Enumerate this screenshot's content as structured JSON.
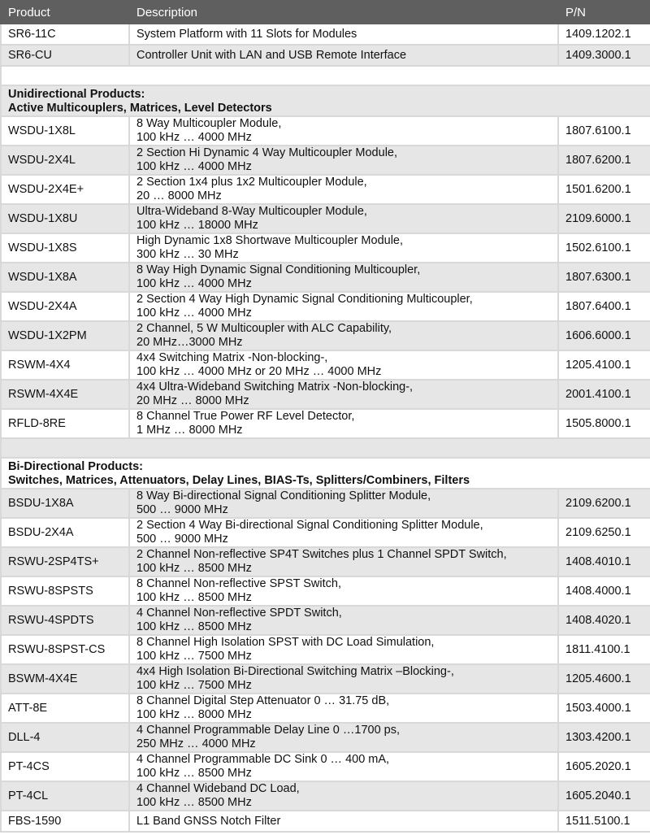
{
  "header": {
    "product": "Product",
    "description": "Description",
    "pn": "P/N"
  },
  "top_rows": [
    {
      "product": "SR6-11C",
      "desc1": "System Platform with 11 Slots for Modules",
      "pn": "1409.1202.1"
    },
    {
      "product": "SR6-CU",
      "desc1": "Controller Unit with LAN and USB Remote Interface",
      "pn": "1409.3000.1"
    }
  ],
  "section1": {
    "line1": "Unidirectional Products:",
    "line2": "Active Multicouplers, Matrices, Level Detectors",
    "rows": [
      {
        "product": "WSDU-1X8L",
        "desc1": "8 Way Multicoupler Module,",
        "desc2": "100 kHz … 4000 MHz",
        "pn": "1807.6100.1"
      },
      {
        "product": "WSDU-2X4L",
        "desc1": "2 Section Hi Dynamic 4 Way Multicoupler Module,",
        "desc2": "100 kHz … 4000 MHz",
        "pn": "1807.6200.1"
      },
      {
        "product": "WSDU-2X4E+",
        "desc1": "2 Section 1x4 plus 1x2 Multicoupler Module,",
        "desc2": "20 … 8000 MHz",
        "pn": "1501.6200.1"
      },
      {
        "product": "WSDU-1X8U",
        "desc1": "Ultra-Wideband 8-Way Multicoupler Module,",
        "desc2": "100 kHz … 18000 MHz",
        "pn": "2109.6000.1"
      },
      {
        "product": "WSDU-1X8S",
        "desc1": "High Dynamic 1x8 Shortwave Multicoupler Module,",
        "desc2": "300 kHz … 30 MHz",
        "pn": "1502.6100.1"
      },
      {
        "product": "WSDU-1X8A",
        "desc1": "8 Way High Dynamic Signal Conditioning Multicoupler,",
        "desc2": "100 kHz … 4000 MHz",
        "pn": "1807.6300.1"
      },
      {
        "product": "WSDU-2X4A",
        "desc1": "2 Section 4 Way High Dynamic Signal Conditioning Multicoupler,",
        "desc2": "100 kHz … 4000 MHz",
        "pn": "1807.6400.1"
      },
      {
        "product": "WSDU-1X2PM",
        "desc1": "2 Channel, 5 W Multicoupler with ALC Capability,",
        "desc2": "20 MHz…3000 MHz",
        "pn": "1606.6000.1"
      },
      {
        "product": "RSWM-4X4",
        "desc1": "4x4 Switching Matrix -Non-blocking-,",
        "desc2": "100 kHz … 4000 MHz or 20 MHz … 4000 MHz",
        "pn": "1205.4100.1"
      },
      {
        "product": "RSWM-4X4E",
        "desc1": "4x4 Ultra-Wideband Switching Matrix -Non-blocking-,",
        "desc2": "20 MHz … 8000 MHz",
        "pn": "2001.4100.1"
      },
      {
        "product": "RFLD-8RE",
        "desc1": "8 Channel True Power RF Level Detector,",
        "desc2": "1 MHz … 8000 MHz",
        "pn": "1505.8000.1"
      }
    ]
  },
  "section2": {
    "line1": "Bi-Directional Products:",
    "line2": "Switches, Matrices, Attenuators, Delay Lines, BIAS-Ts, Splitters/Combiners, Filters",
    "rows": [
      {
        "product": "BSDU-1X8A",
        "desc1": "8 Way Bi-directional Signal Conditioning Splitter Module,",
        "desc2": "500 … 9000 MHz",
        "pn": "2109.6200.1"
      },
      {
        "product": "BSDU-2X4A",
        "desc1": "2 Section 4 Way Bi-directional Signal Conditioning Splitter Module,",
        "desc2": "500 … 9000 MHz",
        "pn": "2109.6250.1"
      },
      {
        "product": "RSWU-2SP4TS+",
        "desc1": "2 Channel Non-reflective SP4T Switches plus 1 Channel SPDT Switch,",
        "desc2": "100 kHz … 8500 MHz",
        "pn": "1408.4010.1"
      },
      {
        "product": "RSWU-8SPSTS",
        "desc1": "8 Channel Non-reflective SPST Switch,",
        "desc2": "100 kHz … 8500 MHz",
        "pn": "1408.4000.1"
      },
      {
        "product": "RSWU-4SPDTS",
        "desc1": "4 Channel Non-reflective SPDT Switch,",
        "desc2": "100 kHz … 8500 MHz",
        "pn": "1408.4020.1"
      },
      {
        "product": "RSWU-8SPST-CS",
        "desc1": "8 Channel High Isolation SPST with DC Load Simulation,",
        "desc2": "100 kHz … 7500 MHz",
        "pn": "1811.4100.1"
      },
      {
        "product": "BSWM-4X4E",
        "desc1": "4x4 High Isolation Bi-Directional Switching Matrix –Blocking-,",
        "desc2": "100 kHz … 7500 MHz",
        "pn": "1205.4600.1"
      },
      {
        "product": "ATT-8E",
        "desc1": "8 Channel Digital Step Attenuator 0 … 31.75 dB,",
        "desc2": "100 kHz … 8000 MHz",
        "pn": "1503.4000.1"
      },
      {
        "product": "DLL-4",
        "desc1": "4 Channel Programmable Delay Line 0 …1700 ps,",
        "desc2": "250 MHz … 4000 MHz",
        "pn": "1303.4200.1"
      },
      {
        "product": "PT-4CS",
        "desc1": "4 Channel Programmable DC Sink 0 … 400 mA,",
        "desc2": "100 kHz … 8500 MHz",
        "pn": "1605.2020.1"
      },
      {
        "product": "PT-4CL",
        "desc1": "4 Channel Wideband DC Load,",
        "desc2": "100 kHz … 8500 MHz",
        "pn": "1605.2040.1"
      },
      {
        "product": "FBS-1590",
        "desc1": "L1 Band GNSS Notch Filter",
        "pn": "1511.5100.1"
      }
    ]
  }
}
